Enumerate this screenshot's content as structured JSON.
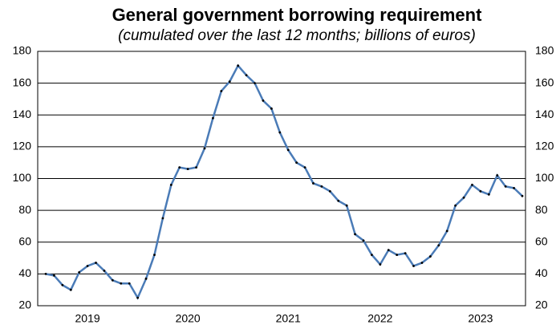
{
  "chart_data": {
    "type": "line",
    "title": "General government borrowing requirement",
    "subtitle": "(cumulated over the last 12 months; billions of euros)",
    "categories": [
      null,
      null,
      null,
      null,
      null,
      "2019",
      null,
      null,
      null,
      null,
      null,
      null,
      null,
      null,
      null,
      null,
      null,
      "2020",
      null,
      null,
      null,
      null,
      null,
      null,
      null,
      null,
      null,
      null,
      null,
      "2021",
      null,
      null,
      null,
      null,
      null,
      null,
      null,
      null,
      null,
      null,
      "2022",
      null,
      null,
      null,
      null,
      null,
      null,
      null,
      null,
      null,
      null,
      null,
      "2023",
      null,
      null,
      null,
      null,
      null
    ],
    "series": [
      {
        "color": "#4a7bb7",
        "values": [
          40,
          39,
          33,
          30,
          41,
          45,
          47,
          42,
          36,
          34,
          34,
          25,
          37,
          52,
          75,
          96,
          107,
          106,
          107,
          119,
          138,
          155,
          161,
          171,
          165,
          160,
          149,
          144,
          129,
          118,
          110,
          107,
          97,
          95,
          92,
          86,
          83,
          65,
          61,
          52,
          46,
          55,
          52,
          53,
          45,
          47,
          51,
          58,
          67,
          83,
          88,
          96,
          92,
          90,
          102,
          95,
          94,
          89
        ]
      }
    ],
    "ylim": [
      20,
      180
    ],
    "yticks": [
      20,
      40,
      60,
      80,
      100,
      120,
      140,
      160,
      180
    ],
    "grid": true
  }
}
